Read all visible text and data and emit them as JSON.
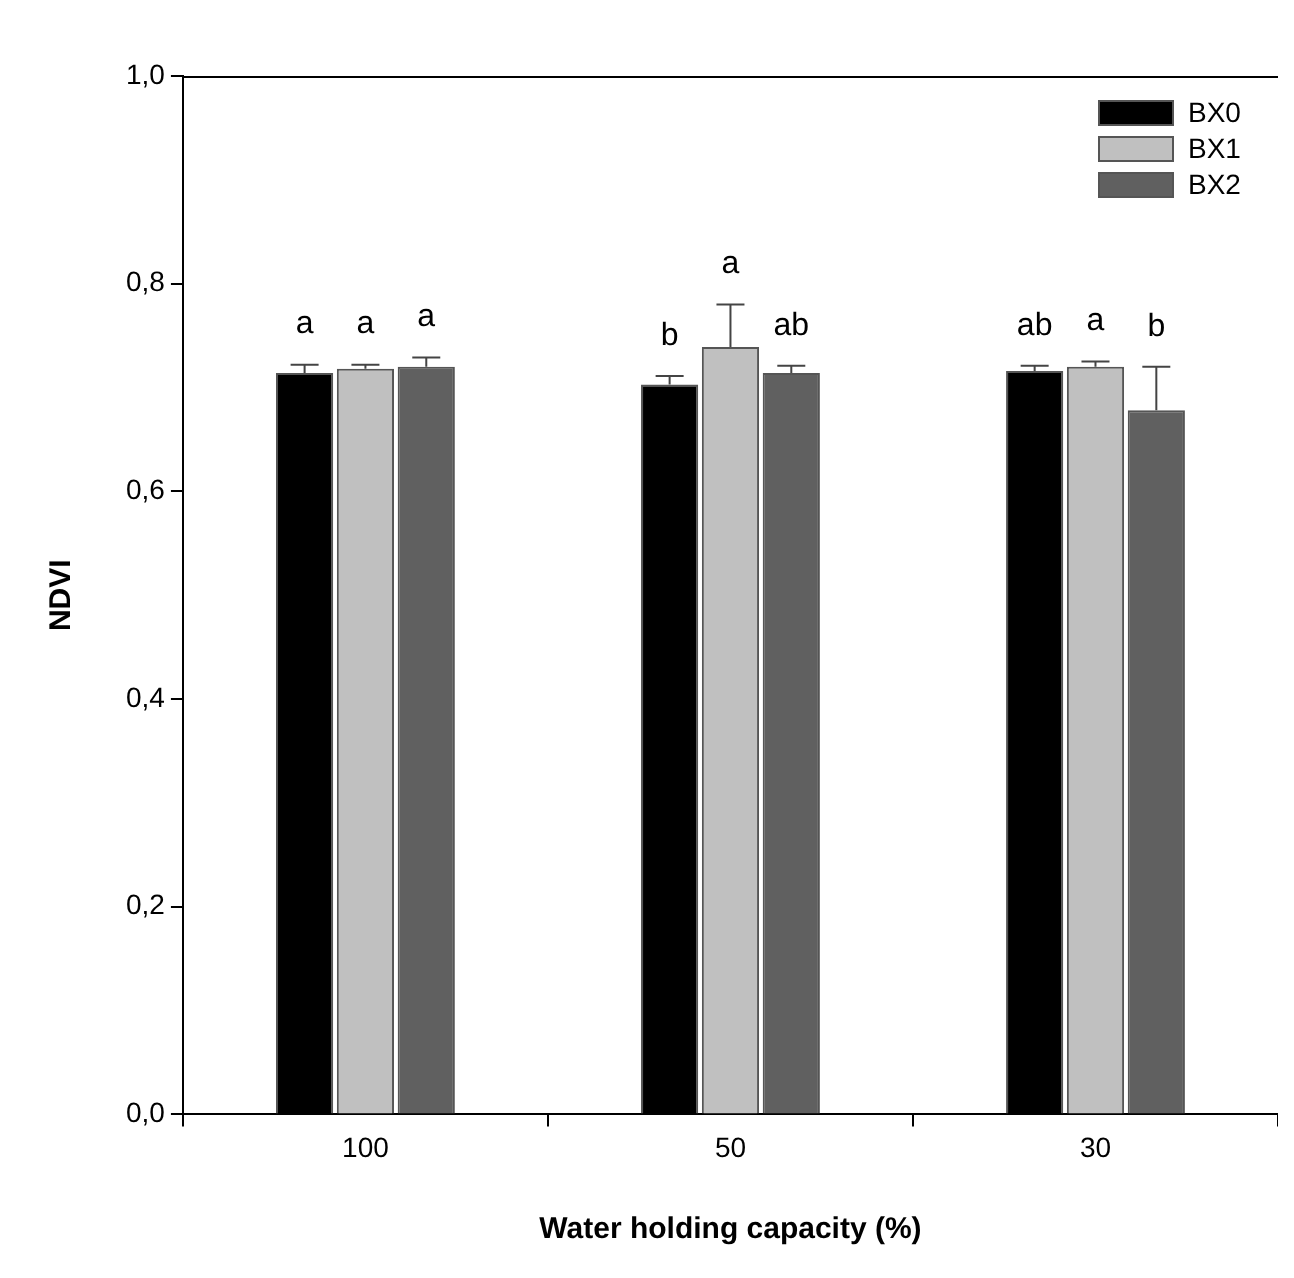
{
  "chart_data": {
    "type": "bar",
    "xlabel": "Water holding capacity (%)",
    "ylabel": "NDVI",
    "categories": [
      "100",
      "50",
      "30"
    ],
    "series": [
      {
        "name": "BX0",
        "color": "#000000",
        "values": [
          0.714,
          0.703,
          0.716
        ],
        "errors": [
          [
            0.714,
            0.722
          ],
          [
            0.703,
            0.711
          ],
          [
            0.716,
            0.721
          ]
        ],
        "value_labels": [
          "a",
          "b",
          "ab"
        ]
      },
      {
        "name": "BX1",
        "color": "#c0c0c0",
        "values": [
          0.718,
          0.739,
          0.72
        ],
        "errors": [
          [
            0.718,
            0.722
          ],
          [
            0.739,
            0.78
          ],
          [
            0.72,
            0.725
          ]
        ],
        "value_labels": [
          "a",
          "a",
          "a"
        ]
      },
      {
        "name": "BX2",
        "color": "#606060",
        "values": [
          0.72,
          0.714,
          0.678
        ],
        "errors": [
          [
            0.72,
            0.729
          ],
          [
            0.714,
            0.721
          ],
          [
            0.678,
            0.72
          ]
        ],
        "value_labels": [
          "a",
          "ab",
          "b"
        ]
      }
    ],
    "ylim": [
      0,
      1
    ],
    "yticks": [
      {
        "value": 0,
        "label": "0,0"
      },
      {
        "value": 0.2,
        "label": "0,2"
      },
      {
        "value": 0.4,
        "label": "0,4"
      },
      {
        "value": 0.6,
        "label": "0,6"
      },
      {
        "value": 0.8,
        "label": "0,8"
      },
      {
        "value": 1,
        "label": "1,0"
      }
    ],
    "grid": false,
    "legend": "top right"
  }
}
